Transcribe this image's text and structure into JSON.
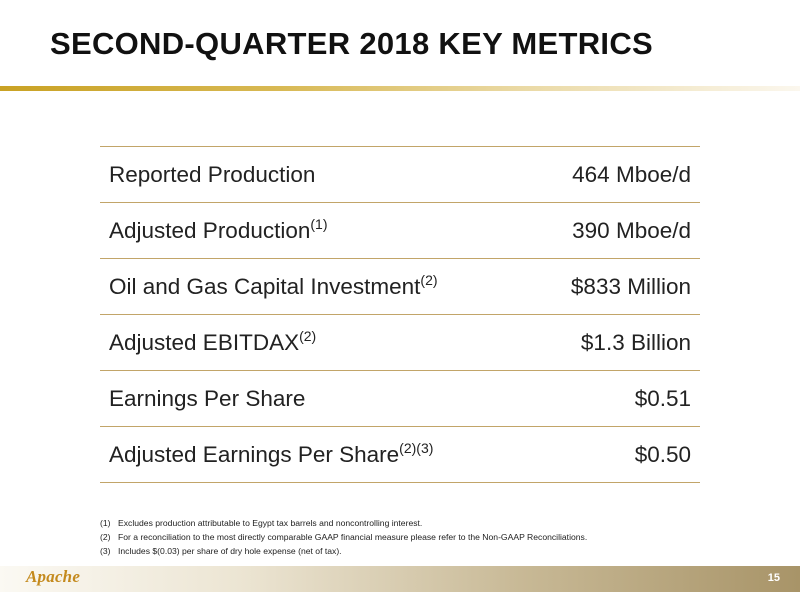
{
  "title": "SECOND-QUARTER 2018 KEY METRICS",
  "metrics": [
    {
      "label": "Reported Production",
      "sup": "",
      "value": "464 Mboe/d"
    },
    {
      "label": "Adjusted Production",
      "sup": "(1)",
      "value": "390 Mboe/d"
    },
    {
      "label": "Oil and Gas Capital Investment",
      "sup": "(2)",
      "value": "$833 Million"
    },
    {
      "label": "Adjusted EBITDAX",
      "sup": "(2)",
      "value": "$1.3 Billion"
    },
    {
      "label": "Earnings Per Share",
      "sup": "",
      "value": "$0.51"
    },
    {
      "label": "Adjusted Earnings Per Share",
      "sup": "(2)(3)",
      "value": "$0.50"
    }
  ],
  "footnotes": [
    {
      "num": "(1)",
      "text": "Excludes production attributable to Egypt tax barrels and noncontrolling interest."
    },
    {
      "num": "(2)",
      "text": "For a reconciliation to the most directly comparable GAAP financial measure please refer to the Non-GAAP Reconciliations."
    },
    {
      "num": "(3)",
      "text": "Includes $(0.03) per share of dry hole expense (net of tax)."
    }
  ],
  "footer": {
    "logo_text": "Apache",
    "page_number": "15"
  },
  "colors": {
    "accent_gold": "#c9a224",
    "table_rule": "#c2a569",
    "logo": "#c48a1e"
  }
}
